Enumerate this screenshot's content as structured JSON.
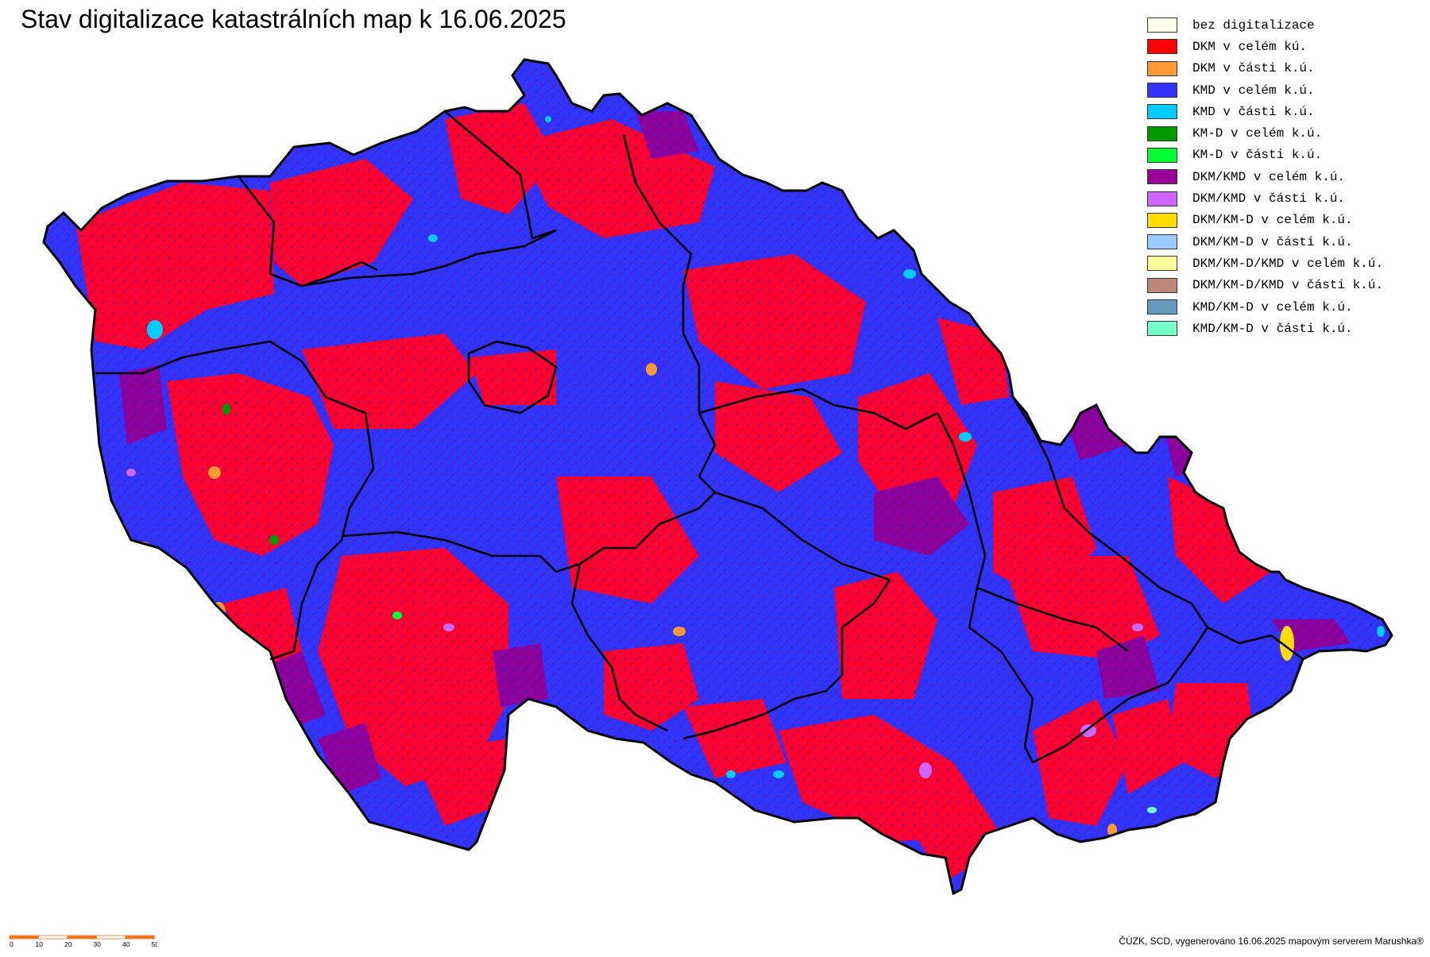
{
  "map": {
    "title": "Stav digitalizace katastrálních map k 16.06.2025",
    "credits": "ČÚZK, SCD, vygenerováno 16.06.2025 mapovým serverem Marushka®",
    "colors": {
      "red": "#ff0033",
      "blue": "#3333ff",
      "purple": "#8c00a0",
      "orange": "#ff9933",
      "cyan": "#00ccff",
      "border": "#000000"
    }
  },
  "legend": {
    "items": [
      {
        "label": "bez digitalizace",
        "color": "#ffffee"
      },
      {
        "label": "DKM v celém kú.",
        "color": "#ff0000"
      },
      {
        "label": "DKM v části k.ú.",
        "color": "#ff9933"
      },
      {
        "label": "KMD v celém k.ú.",
        "color": "#3333ff"
      },
      {
        "label": "KMD v části k.ú.",
        "color": "#00ccff"
      },
      {
        "label": "KM-D v celém k.ú.",
        "color": "#009900"
      },
      {
        "label": "KM-D v části k.ú.",
        "color": "#00ff33"
      },
      {
        "label": "DKM/KMD v celém k.ú.",
        "color": "#990099"
      },
      {
        "label": "DKM/KMD v části k.ú.",
        "color": "#cc66ff"
      },
      {
        "label": "DKM/KM-D v celém k.ú.",
        "color": "#ffdd00"
      },
      {
        "label": "DKM/KM-D v části k.ú.",
        "color": "#99ccff"
      },
      {
        "label": "DKM/KM-D/KMD v celém k.ú.",
        "color": "#ffff99"
      },
      {
        "label": "DKM/KM-D/KMD v části k.ú.",
        "color": "#bb8877"
      },
      {
        "label": "KMD/KM-D v celém k.ú.",
        "color": "#6699bb"
      },
      {
        "label": "KMD/KM-D v části k.ú.",
        "color": "#77ffcc"
      }
    ]
  },
  "scale": {
    "ticks": [
      "0",
      "10",
      "20",
      "30",
      "40",
      "50 km"
    ],
    "colors": [
      "#ee7722",
      "#ffffff"
    ]
  }
}
